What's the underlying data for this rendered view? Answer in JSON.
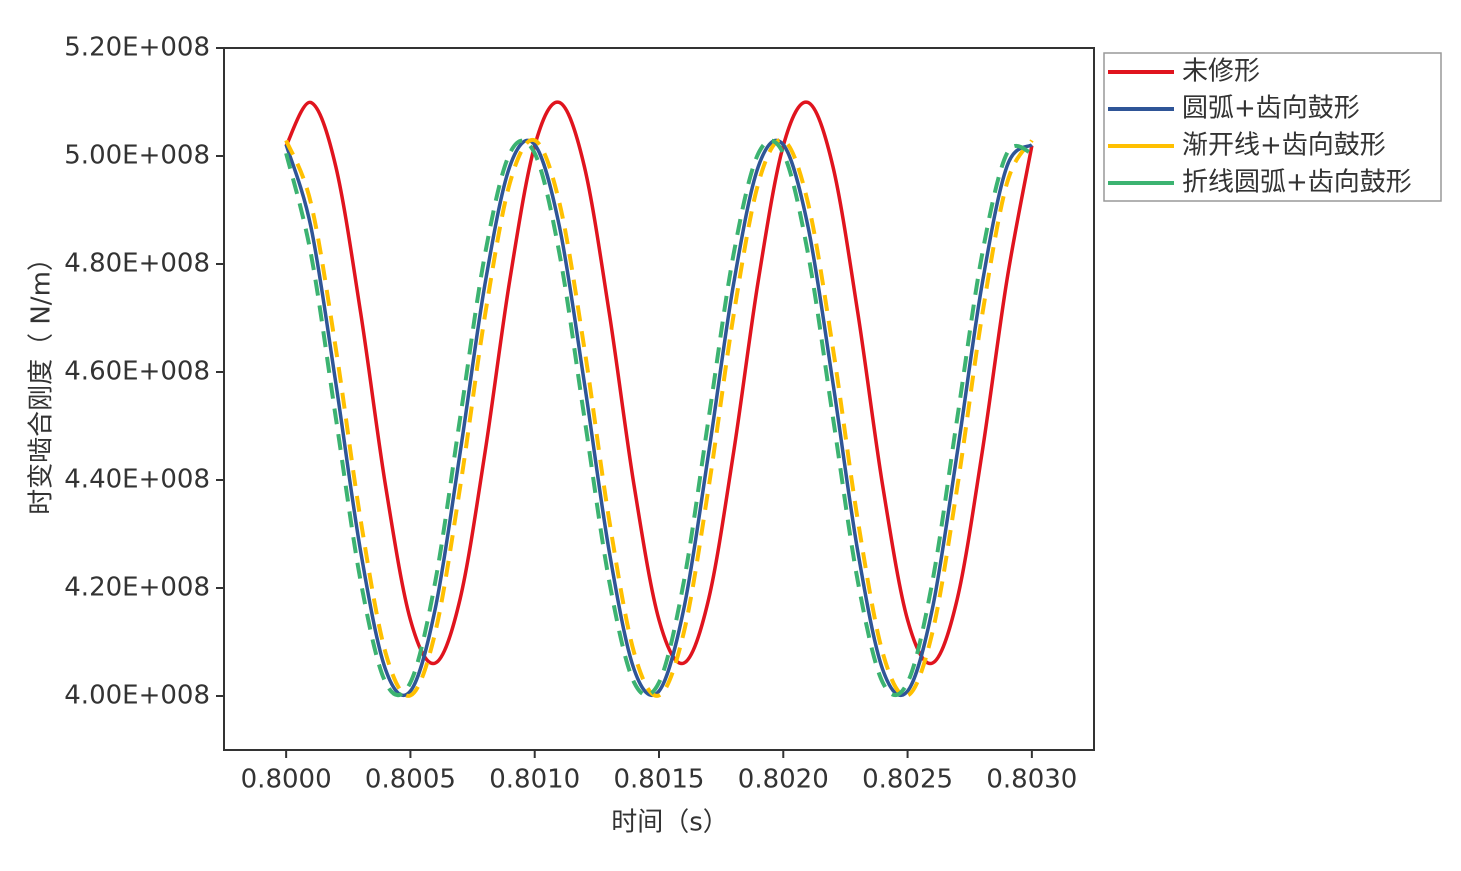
{
  "chart_data": {
    "type": "line",
    "xlabel": "时间（s）",
    "ylabel": "时变啮合刚度（ N/m）",
    "x": [
      0.8,
      0.8001,
      0.8002,
      0.8003,
      0.8004,
      0.8005,
      0.8006,
      0.8007,
      0.8008,
      0.8009,
      0.801,
      0.8011,
      0.8012,
      0.8013,
      0.8014,
      0.8015,
      0.8016,
      0.8017,
      0.8018,
      0.8019,
      0.802,
      0.8021,
      0.8022,
      0.8023,
      0.8024,
      0.8025,
      0.8026,
      0.8027,
      0.8028,
      0.8029,
      0.803
    ],
    "series": [
      {
        "name": "未修形",
        "color": "#e0141e",
        "style": "solid",
        "values": [
          501900000,
          509900000,
          498000000,
          470900000,
          438900000,
          414100000,
          406100000,
          418000000,
          445100000,
          477100000,
          501900000,
          509900000,
          498000000,
          470900000,
          438900000,
          414100000,
          406100000,
          418000000,
          445100000,
          477100000,
          501900000,
          509900000,
          498000000,
          470900000,
          438900000,
          414100000,
          406100000,
          418000000,
          445100000,
          477100000,
          501900000
        ]
      },
      {
        "name": "圆弧+齿向鼓形",
        "color": "#2f5597",
        "style": "solid",
        "values": [
          502100000,
          486800000,
          457900000,
          426700000,
          404900000,
          400900000,
          416200000,
          445100000,
          476300000,
          498100000,
          502100000,
          486800000,
          457900000,
          426700000,
          404900000,
          400900000,
          416200000,
          445100000,
          476300000,
          498100000,
          502100000,
          486800000,
          457900000,
          426700000,
          404900000,
          400900000,
          416200000,
          445100000,
          476300000,
          498100000,
          502100000
        ]
      },
      {
        "name": "渐开线+齿向鼓形",
        "color": "#ffc000",
        "style": "dashed",
        "values": [
          502900000,
          491200000,
          464300000,
          432500000,
          408000000,
          400100000,
          411800000,
          438700000,
          470500000,
          495000000,
          502900000,
          491200000,
          464300000,
          432500000,
          408000000,
          400100000,
          411800000,
          438700000,
          470500000,
          495000000,
          502900000,
          491200000,
          464300000,
          432500000,
          408000000,
          400100000,
          411800000,
          438700000,
          470500000,
          495000000,
          502900000
        ]
      },
      {
        "name": "折线圆弧+齿向鼓形",
        "color": "#3cb371",
        "style": "dashed",
        "values": [
          500500000,
          481800000,
          451500000,
          421200000,
          402500000,
          402500000,
          421200000,
          451500000,
          481800000,
          500500000,
          500500000,
          481800000,
          451500000,
          421200000,
          402500000,
          402500000,
          421200000,
          451500000,
          481800000,
          500500000,
          500500000,
          481800000,
          451500000,
          421200000,
          402500000,
          402500000,
          421200000,
          451500000,
          481800000,
          500500000,
          500500000
        ]
      }
    ],
    "xlim": [
      0.79975,
      0.80325
    ],
    "xticks": [
      {
        "value": 0.8,
        "label": "0.8000"
      },
      {
        "value": 0.8005,
        "label": "0.8005"
      },
      {
        "value": 0.801,
        "label": "0.8010"
      },
      {
        "value": 0.8015,
        "label": "0.8015"
      },
      {
        "value": 0.802,
        "label": "0.8020"
      },
      {
        "value": 0.8025,
        "label": "0.8025"
      },
      {
        "value": 0.803,
        "label": "0.8030"
      }
    ],
    "ylim": [
      390000000,
      520000000
    ],
    "yticks": [
      {
        "value": 400000000,
        "label": "4.00E+008"
      },
      {
        "value": 420000000,
        "label": "4.20E+008"
      },
      {
        "value": 440000000,
        "label": "4.40E+008"
      },
      {
        "value": 460000000,
        "label": "4.60E+008"
      },
      {
        "value": 480000000,
        "label": "4.80E+008"
      },
      {
        "value": 500000000,
        "label": "5.00E+008"
      },
      {
        "value": 520000000,
        "label": "5.20E+008"
      }
    ],
    "grid": false,
    "legend": "outside-top-right"
  }
}
